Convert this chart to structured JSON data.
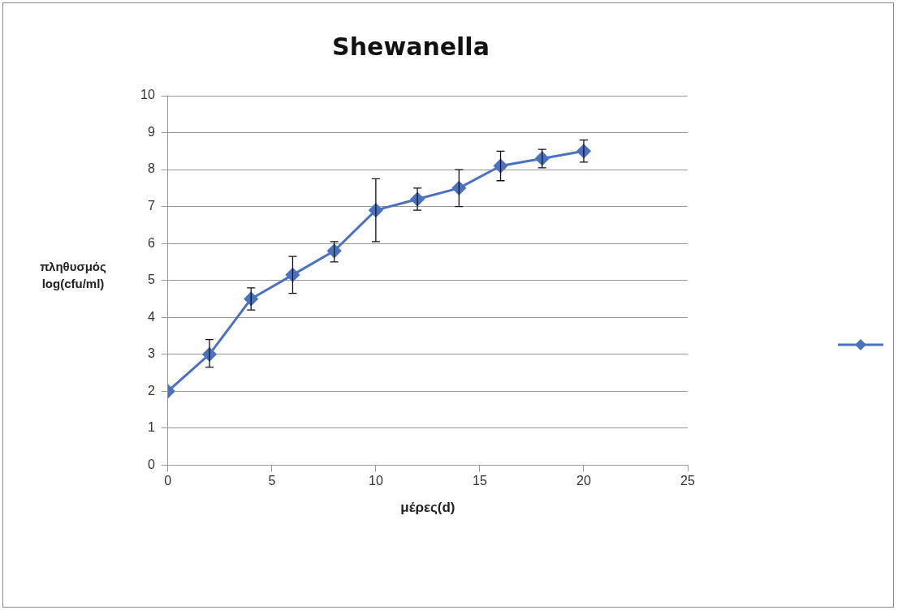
{
  "chart_data": {
    "type": "line",
    "title": "Shewanella",
    "xlabel": "μέρες(d)",
    "ylabel": "πληθυσμός log(cfu/ml)",
    "x": [
      0,
      2,
      4,
      6,
      8,
      10,
      12,
      14,
      16,
      18,
      20
    ],
    "series": [
      {
        "color": "#4a72c0",
        "values": [
          2.0,
          3.0,
          4.5,
          5.15,
          5.8,
          6.9,
          7.2,
          7.5,
          8.1,
          8.3,
          8.5
        ],
        "errors": [
          null,
          [
            2.65,
            3.4
          ],
          [
            4.2,
            4.8
          ],
          [
            4.65,
            5.65
          ],
          [
            5.5,
            6.05
          ],
          [
            6.05,
            7.75
          ],
          [
            6.9,
            7.5
          ],
          [
            7.0,
            8.0
          ],
          [
            7.7,
            8.5
          ],
          [
            8.05,
            8.55
          ],
          [
            8.2,
            8.8
          ]
        ]
      }
    ],
    "xlim": [
      0,
      25
    ],
    "xticks": [
      0,
      5,
      10,
      15,
      20,
      25
    ],
    "ylim": [
      0,
      10
    ],
    "yticks": [
      0,
      1,
      2,
      3,
      4,
      5,
      6,
      7,
      8,
      9,
      10
    ],
    "grid": "y",
    "marker": "diamond",
    "line_style": "solid"
  }
}
